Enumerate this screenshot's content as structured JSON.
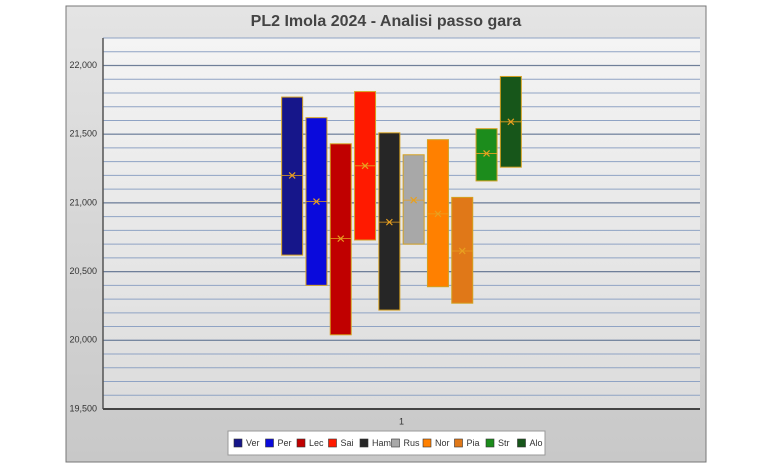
{
  "chart_data": {
    "type": "floating-bar",
    "title": "PL2 Imola 2024 - Analisi passo gara",
    "categories": [
      "1"
    ],
    "ylim": [
      19.5,
      22.2
    ],
    "yticks": [
      {
        "value": 19.5,
        "label": "19,500"
      },
      {
        "value": 20,
        "label": "20,000"
      },
      {
        "value": 20.5,
        "label": "20,500"
      },
      {
        "value": 21,
        "label": "21,000"
      },
      {
        "value": 21.5,
        "label": "21,500"
      },
      {
        "value": 22,
        "label": "22,000"
      }
    ],
    "grid": true,
    "minor_grid_step": 0.1,
    "legend": "bottom",
    "border_color": "#d4a020",
    "marker_color": "#e8a020",
    "series": [
      {
        "name": "Ver",
        "color": "#16168a",
        "low": [
          20.62
        ],
        "high": [
          21.77
        ],
        "mean": [
          21.2
        ]
      },
      {
        "name": "Per",
        "color": "#0a0adc",
        "low": [
          20.4
        ],
        "high": [
          21.62
        ],
        "mean": [
          21.01
        ]
      },
      {
        "name": "Lec",
        "color": "#c00000",
        "low": [
          20.04
        ],
        "high": [
          21.43
        ],
        "mean": [
          20.74
        ]
      },
      {
        "name": "Sai",
        "color": "#ff1a00",
        "low": [
          20.73
        ],
        "high": [
          21.81
        ],
        "mean": [
          21.27
        ]
      },
      {
        "name": "Ham",
        "color": "#262626",
        "low": [
          20.22
        ],
        "high": [
          21.51
        ],
        "mean": [
          20.86
        ]
      },
      {
        "name": "Rus",
        "color": "#a8a8a8",
        "low": [
          20.7
        ],
        "high": [
          21.35
        ],
        "mean": [
          21.02
        ]
      },
      {
        "name": "Nor",
        "color": "#ff8000",
        "low": [
          20.39
        ],
        "high": [
          21.46
        ],
        "mean": [
          20.92
        ]
      },
      {
        "name": "Pia",
        "color": "#e07818",
        "low": [
          20.27
        ],
        "high": [
          21.04
        ],
        "mean": [
          20.65
        ]
      },
      {
        "name": "Str",
        "color": "#1c8c1c",
        "low": [
          21.16
        ],
        "high": [
          21.54
        ],
        "mean": [
          21.36
        ]
      },
      {
        "name": "Alo",
        "color": "#17561a",
        "low": [
          21.26
        ],
        "high": [
          21.92
        ],
        "mean": [
          21.59
        ]
      }
    ]
  }
}
